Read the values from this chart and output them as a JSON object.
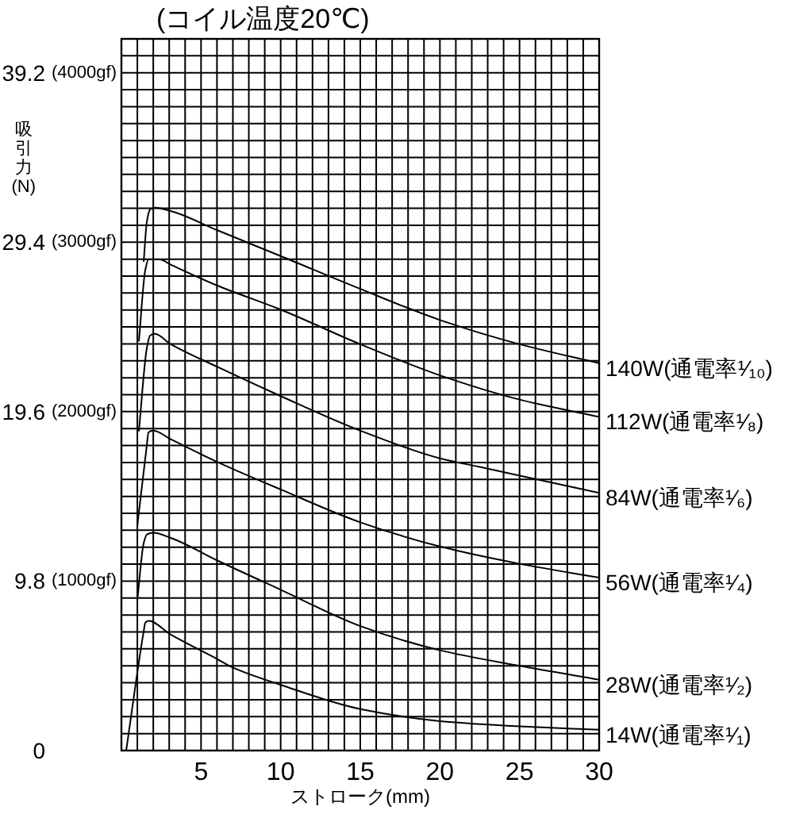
{
  "chart_data": {
    "type": "line",
    "title": "(コイル温度20℃)",
    "xlabel": "ストローク(mm)",
    "ylabel": "吸引力(N)",
    "xlim": [
      0,
      30
    ],
    "ylim": [
      0,
      41.16
    ],
    "y2lim": [
      0,
      4200
    ],
    "xticks": [
      {
        "value": 0,
        "label": null
      },
      {
        "value": 1,
        "label": null
      },
      {
        "value": 2,
        "label": null
      },
      {
        "value": 3,
        "label": null
      },
      {
        "value": 4,
        "label": null
      },
      5,
      {
        "value": 6,
        "label": null
      },
      {
        "value": 7,
        "label": null
      },
      {
        "value": 8,
        "label": null
      },
      {
        "value": 9,
        "label": null
      },
      10,
      {
        "value": 11,
        "label": null
      },
      {
        "value": 12,
        "label": null
      },
      {
        "value": 13,
        "label": null
      },
      {
        "value": 14,
        "label": null
      },
      15,
      {
        "value": 16,
        "label": null
      },
      {
        "value": 17,
        "label": null
      },
      {
        "value": 18,
        "label": null
      },
      {
        "value": 19,
        "label": null
      },
      20,
      {
        "value": 21,
        "label": null
      },
      {
        "value": 22,
        "label": null
      },
      {
        "value": 23,
        "label": null
      },
      {
        "value": 24,
        "label": null
      },
      25,
      {
        "value": 26,
        "label": null
      },
      {
        "value": 27,
        "label": null
      },
      {
        "value": 28,
        "label": null
      },
      {
        "value": 29,
        "label": null
      },
      30
    ],
    "yticks": [
      0,
      {
        "value": 0.98,
        "label": null
      },
      {
        "value": 1.96,
        "label": null
      },
      {
        "value": 2.94,
        "label": null
      },
      {
        "value": 3.92,
        "label": null
      },
      {
        "value": 4.9,
        "label": null
      },
      {
        "value": 5.88,
        "label": null
      },
      {
        "value": 6.86,
        "label": null
      },
      {
        "value": 7.84,
        "label": null
      },
      {
        "value": 8.82,
        "label": null
      },
      9.8,
      {
        "value": 10.78,
        "label": null
      },
      {
        "value": 11.76,
        "label": null
      },
      {
        "value": 12.74,
        "label": null
      },
      {
        "value": 13.72,
        "label": null
      },
      {
        "value": 14.7,
        "label": null
      },
      {
        "value": 15.68,
        "label": null
      },
      {
        "value": 16.66,
        "label": null
      },
      {
        "value": 17.64,
        "label": null
      },
      {
        "value": 18.62,
        "label": null
      },
      19.6,
      {
        "value": 20.58,
        "label": null
      },
      {
        "value": 21.56,
        "label": null
      },
      {
        "value": 22.54,
        "label": null
      },
      {
        "value": 23.52,
        "label": null
      },
      {
        "value": 24.5,
        "label": null
      },
      {
        "value": 25.48,
        "label": null
      },
      {
        "value": 26.46,
        "label": null
      },
      {
        "value": 27.44,
        "label": null
      },
      {
        "value": 28.42,
        "label": null
      },
      29.4,
      {
        "value": 30.38,
        "label": null
      },
      {
        "value": 31.36,
        "label": null
      },
      {
        "value": 32.34,
        "label": null
      },
      {
        "value": 33.32,
        "label": null
      },
      {
        "value": 34.3,
        "label": null
      },
      {
        "value": 35.28,
        "label": null
      },
      {
        "value": 36.26,
        "label": null
      },
      {
        "value": 37.24,
        "label": null
      },
      {
        "value": 38.22,
        "label": null
      },
      39.2,
      {
        "value": 40.18,
        "label": null
      }
    ],
    "y2ticks": [
      {
        "value": 1000,
        "label": "(1000gf)"
      },
      {
        "value": 2000,
        "label": "(2000gf)"
      },
      {
        "value": 3000,
        "label": "(3000gf)"
      },
      {
        "value": 4000,
        "label": "(4000gf)"
      }
    ],
    "grid": true,
    "series": [
      {
        "name": "140W(通電率¹⁄₁₀)",
        "color": "#000000",
        "x": [
          1.4,
          1.6,
          1.8,
          2.1,
          3.1,
          6,
          10,
          15,
          20,
          25,
          30
        ],
        "values": [
          28.3,
          30.6,
          31.3,
          31.4,
          31.2,
          30.1,
          28.6,
          26.7,
          24.9,
          23.5,
          22.4
        ]
      },
      {
        "name": "112W(通電率¹⁄₈)",
        "color": "#000000",
        "x": [
          1.1,
          1.5,
          1.7,
          2.4,
          3.1,
          6,
          10,
          15,
          20,
          25,
          30
        ],
        "values": [
          23.7,
          27.8,
          28.4,
          28.4,
          28.1,
          26.9,
          25.5,
          23.5,
          21.7,
          20.3,
          19.3
        ]
      },
      {
        "name": "84W(通電率¹⁄₆)",
        "color": "#000000",
        "x": [
          1.1,
          1.6,
          1.8,
          2.1,
          3.1,
          6,
          10,
          15,
          20,
          22.5,
          25,
          30
        ],
        "values": [
          18.5,
          23.3,
          24.0,
          24.1,
          23.5,
          22.2,
          20.5,
          18.5,
          16.9,
          16.4,
          15.9,
          14.9
        ]
      },
      {
        "name": "56W(通電率¹⁄₄)",
        "color": "#000000",
        "x": [
          1.0,
          1.6,
          1.7,
          2.0,
          3.1,
          6,
          10,
          15,
          20,
          25,
          30
        ],
        "values": [
          13.0,
          17.7,
          18.4,
          18.5,
          18.0,
          16.7,
          15.1,
          13.2,
          11.8,
          10.8,
          10.0
        ]
      },
      {
        "name": "28W(通電率¹⁄₂)",
        "color": "#000000",
        "x": [
          1.0,
          1.4,
          1.6,
          2.0,
          3.1,
          6,
          10,
          15,
          20,
          25,
          30
        ],
        "values": [
          8.7,
          12.0,
          12.5,
          12.6,
          12.3,
          11.0,
          9.3,
          7.2,
          5.8,
          4.9,
          4.1
        ]
      },
      {
        "name": "14W(通電率¹⁄₁)",
        "color": "#000000",
        "x": [
          0.3,
          1.4,
          1.5,
          1.7,
          3.1,
          6,
          7,
          10,
          15,
          20,
          25,
          30
        ],
        "values": [
          0,
          6.9,
          7.4,
          7.5,
          6.7,
          5.3,
          4.8,
          3.8,
          2.4,
          1.7,
          1.4,
          1.2
        ]
      }
    ]
  }
}
